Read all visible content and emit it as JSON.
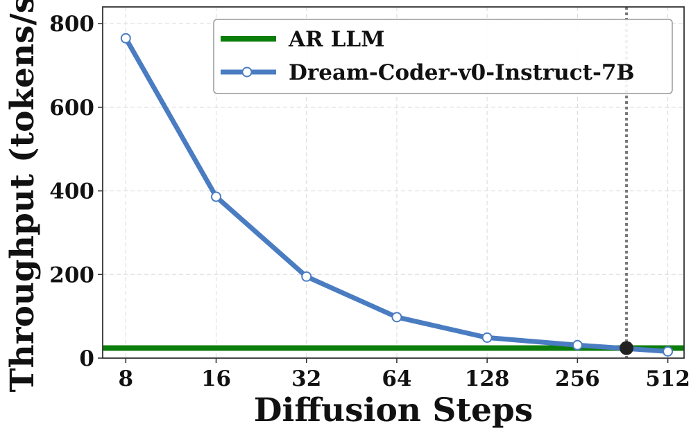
{
  "chart_data": {
    "type": "line",
    "xlabel": "Diffusion Steps",
    "ylabel": "Throughput (tokens/s)",
    "x_scale": "log2",
    "x": [
      8,
      16,
      32,
      64,
      128,
      256,
      512
    ],
    "x_tick_labels": [
      "8",
      "16",
      "32",
      "64",
      "128",
      "256",
      "512"
    ],
    "ylim": [
      0,
      840
    ],
    "y_ticks": [
      0,
      200,
      400,
      600,
      800
    ],
    "y_tick_labels": [
      "0",
      "200",
      "400",
      "600",
      "800"
    ],
    "grid": true,
    "legend_position": "top-right",
    "series": [
      {
        "name": "Dream-Coder-v0-Instruct-7B",
        "color": "#4a7cc1",
        "marker": "hollow-circle",
        "values": [
          765,
          386,
          195,
          98,
          49,
          31,
          16
        ]
      }
    ],
    "reference_lines": [
      {
        "name": "AR LLM",
        "orientation": "horizontal",
        "value": 24,
        "color": "#0b7d0b"
      },
      {
        "orientation": "vertical",
        "value": 373,
        "style": "dotted",
        "color": "#777777"
      }
    ],
    "annotations": [
      {
        "type": "intersection-point",
        "x": 373,
        "y": 24,
        "color": "#222222"
      }
    ]
  }
}
